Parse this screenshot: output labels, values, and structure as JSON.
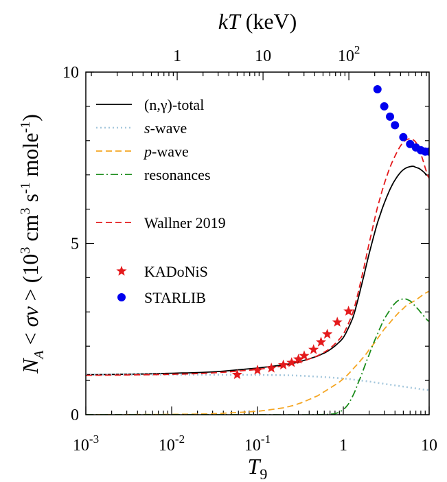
{
  "chart_data": {
    "type": "line",
    "xlabel": "T",
    "xlabel_sub": "9",
    "x2label_italic": "kT",
    "x2label_rest": " (keV)",
    "ylabel": "N_A <σv> (10^3 cm^3 s^-1 mole^-1)",
    "x_scale": "log",
    "xlim": [
      0.001,
      10
    ],
    "ylim": [
      0,
      10
    ],
    "x_ticks": [
      {
        "base": "10",
        "exp": "-3"
      },
      {
        "base": "10",
        "exp": "-2"
      },
      {
        "base": "10",
        "exp": "-1"
      },
      {
        "base": "1",
        "exp": ""
      },
      {
        "base": "10",
        "exp": ""
      }
    ],
    "y_ticks": [
      "0",
      "5",
      "10"
    ],
    "top_ticks": [
      {
        "base": "1",
        "exp": ""
      },
      {
        "base": "10",
        "exp": ""
      },
      {
        "base": "10",
        "exp": "2"
      }
    ],
    "legend_position": "top-left",
    "series": [
      {
        "name": "(n,γ)-total",
        "style": "solid",
        "color": "#000000",
        "x": [
          0.001,
          0.003,
          0.01,
          0.03,
          0.1,
          0.2,
          0.3,
          0.5,
          0.7,
          1.0,
          1.3,
          1.6,
          2.0,
          2.5,
          3.2,
          4.0,
          5.0,
          6.3,
          7.0,
          8.0,
          10.0
        ],
        "y": [
          1.17,
          1.18,
          1.21,
          1.25,
          1.36,
          1.45,
          1.54,
          1.71,
          1.9,
          2.25,
          2.85,
          3.7,
          4.7,
          5.6,
          6.35,
          6.85,
          7.15,
          7.25,
          7.22,
          7.15,
          6.95
        ]
      },
      {
        "name": "s-wave",
        "name_italic": "s",
        "name_rest": "-wave",
        "style": "dotted",
        "color": "#a6c8dd",
        "x": [
          0.001,
          0.01,
          0.1,
          0.3,
          1.0,
          2.0,
          3.0,
          5.0,
          10.0
        ],
        "y": [
          1.17,
          1.17,
          1.16,
          1.14,
          1.06,
          0.97,
          0.9,
          0.82,
          0.72
        ]
      },
      {
        "name": "p-wave",
        "name_italic": "p",
        "name_rest": "-wave",
        "style": "dashed",
        "color": "#f5a623",
        "x": [
          0.001,
          0.01,
          0.03,
          0.1,
          0.2,
          0.3,
          0.5,
          0.7,
          1.0,
          1.5,
          2.0,
          3.0,
          5.0,
          7.0,
          10.0
        ],
        "y": [
          0.0,
          0.01,
          0.03,
          0.1,
          0.2,
          0.32,
          0.55,
          0.78,
          1.05,
          1.5,
          1.9,
          2.5,
          3.1,
          3.35,
          3.6
        ]
      },
      {
        "name": "resonances",
        "style": "dashdot",
        "color": "#1a8c1a",
        "x": [
          0.001,
          0.1,
          0.5,
          0.8,
          1.0,
          1.2,
          1.5,
          2.0,
          2.5,
          3.0,
          4.0,
          5.0,
          6.0,
          7.0,
          8.0,
          10.0
        ],
        "y": [
          0.0,
          0.0,
          0.0,
          0.03,
          0.15,
          0.4,
          0.95,
          1.75,
          2.35,
          2.8,
          3.25,
          3.38,
          3.32,
          3.15,
          2.98,
          2.72
        ]
      },
      {
        "name": "Wallner 2019",
        "style": "dashed",
        "color": "#e41a1c",
        "x": [
          0.001,
          0.003,
          0.01,
          0.03,
          0.1,
          0.2,
          0.3,
          0.5,
          0.7,
          1.0,
          1.3,
          1.6,
          2.0,
          2.5,
          3.2,
          4.0,
          5.0,
          6.0,
          7.0,
          8.0,
          10.0
        ],
        "y": [
          1.15,
          1.16,
          1.18,
          1.22,
          1.32,
          1.42,
          1.52,
          1.72,
          1.94,
          2.35,
          3.0,
          3.9,
          5.0,
          6.05,
          6.95,
          7.55,
          7.95,
          8.05,
          7.95,
          7.6,
          6.9
        ]
      }
    ],
    "markers": [
      {
        "name": "KADoNiS",
        "shape": "star",
        "color": "#e41a1c",
        "x": [
          0.058,
          0.1,
          0.145,
          0.2,
          0.25,
          0.3,
          0.35,
          0.45,
          0.55,
          0.65,
          0.85,
          1.15
        ],
        "y": [
          1.17,
          1.3,
          1.36,
          1.45,
          1.52,
          1.62,
          1.72,
          1.9,
          2.12,
          2.35,
          2.7,
          3.02
        ]
      },
      {
        "name": "STARLIB",
        "shape": "circle",
        "color": "#0000ee",
        "x": [
          2.5,
          3.0,
          3.5,
          4.0,
          5.0,
          6.0,
          7.0,
          8.0,
          9.0,
          10.0
        ],
        "y": [
          9.5,
          9.0,
          8.7,
          8.45,
          8.1,
          7.9,
          7.8,
          7.72,
          7.68,
          7.68
        ]
      }
    ]
  }
}
